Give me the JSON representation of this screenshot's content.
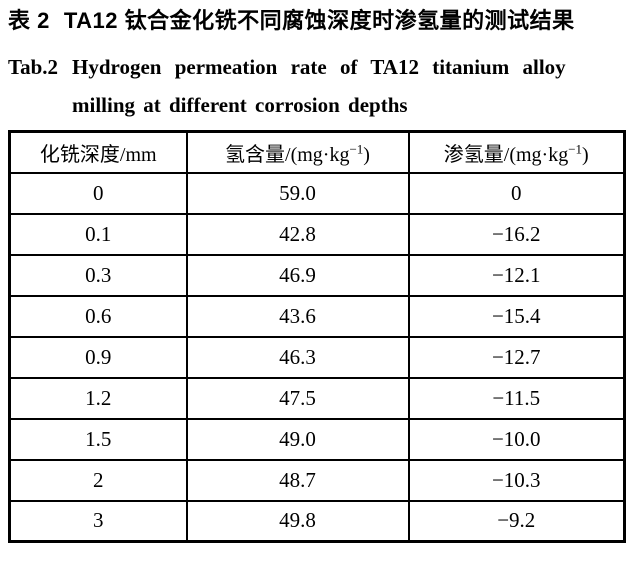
{
  "caption": {
    "zh_label": "表 2",
    "zh_title": "TA12 钛合金化铣不同腐蚀深度时渗氢量的测试结果",
    "en_label": "Tab.2",
    "en_line1": "Hydrogen permeation rate of TA12 titanium alloy",
    "en_line2": "milling at different corrosion depths"
  },
  "table": {
    "headers": [
      {
        "pre": "化铣深度/mm",
        "sup": "",
        "post": ""
      },
      {
        "pre": "氢含量/(mg·kg",
        "sup": "−1",
        "post": ")"
      },
      {
        "pre": "渗氢量/(mg·kg",
        "sup": "−1",
        "post": ")"
      }
    ],
    "rows": [
      [
        "0",
        "59.0",
        "0"
      ],
      [
        "0.1",
        "42.8",
        "−16.2"
      ],
      [
        "0.3",
        "46.9",
        "−12.1"
      ],
      [
        "0.6",
        "43.6",
        "−15.4"
      ],
      [
        "0.9",
        "46.3",
        "−12.7"
      ],
      [
        "1.2",
        "47.5",
        "−11.5"
      ],
      [
        "1.5",
        "49.0",
        "−10.0"
      ],
      [
        "2",
        "48.7",
        "−10.3"
      ],
      [
        "3",
        "49.8",
        "−9.2"
      ]
    ]
  },
  "colors": {
    "text": "#000000",
    "background": "#ffffff",
    "border": "#000000"
  }
}
